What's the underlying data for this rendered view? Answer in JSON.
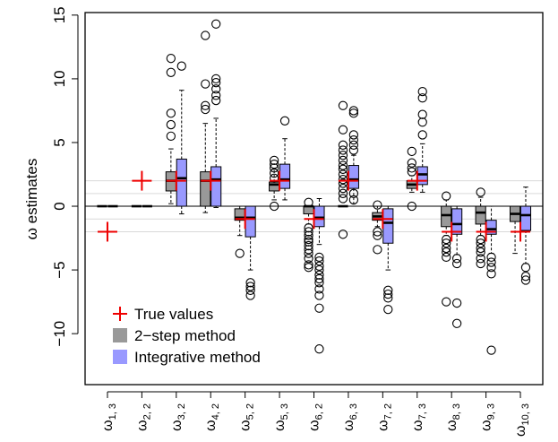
{
  "chart_data": {
    "type": "box",
    "title": "",
    "xlabel": "",
    "ylabel": "ω estimates",
    "ylim": [
      -14.0,
      15.2
    ],
    "y_ticks": [
      -10,
      -5,
      0,
      5,
      10,
      15
    ],
    "y_tick_labels": [
      "−10",
      "−5",
      "0",
      "5",
      "10",
      "15"
    ],
    "categories": [
      {
        "base": "ω",
        "sub": "1, 3"
      },
      {
        "base": "ω",
        "sub": "2, 2"
      },
      {
        "base": "ω",
        "sub": "3, 2"
      },
      {
        "base": "ω",
        "sub": "4, 2"
      },
      {
        "base": "ω",
        "sub": "5, 2"
      },
      {
        "base": "ω",
        "sub": "5, 3"
      },
      {
        "base": "ω",
        "sub": "6, 2"
      },
      {
        "base": "ω",
        "sub": "6, 3"
      },
      {
        "base": "ω",
        "sub": "7, 2"
      },
      {
        "base": "ω",
        "sub": "7, 3"
      },
      {
        "base": "ω",
        "sub": "8, 3"
      },
      {
        "base": "ω",
        "sub": "9, 3"
      },
      {
        "base": "ω",
        "sub": "10, 3"
      }
    ],
    "true_values": [
      -2,
      2,
      2,
      2,
      -1,
      2,
      -1,
      2,
      -1,
      2,
      -2,
      -2,
      -2
    ],
    "reference_lines": [
      -2,
      -1,
      1,
      2
    ],
    "zero_line": 0,
    "series": [
      {
        "name": "2−step method",
        "color": "#999999",
        "boxes": [
          {
            "q1": 0,
            "median": 0,
            "q3": 0,
            "lo": 0,
            "hi": 0,
            "outliers": []
          },
          {
            "q1": 0,
            "median": 0,
            "q3": 0,
            "lo": 0,
            "hi": 0,
            "outliers": []
          },
          {
            "q1": 1.2,
            "median": 2.0,
            "q3": 2.7,
            "lo": 0.2,
            "hi": 4.5,
            "outliers": [
              5.5,
              6.4,
              7.3,
              10.5,
              11.6
            ]
          },
          {
            "q1": 0,
            "median": 2.0,
            "q3": 2.7,
            "lo": -0.5,
            "hi": 6.5,
            "outliers": [
              7.6,
              7.9,
              9.6,
              13.4
            ]
          },
          {
            "q1": -1.1,
            "median": -0.9,
            "q3": -0.2,
            "lo": -2.3,
            "hi": 0,
            "outliers": [
              -3.7
            ]
          },
          {
            "q1": 1.2,
            "median": 1.7,
            "q3": 1.9,
            "lo": 0.5,
            "hi": 2.9,
            "outliers": [
              0.0,
              2.2,
              2.6,
              3.0,
              3.3,
              3.6
            ]
          },
          {
            "q1": -0.6,
            "median": 0,
            "q3": 0,
            "lo": -1.4,
            "hi": 0,
            "outliers": [
              -1.7,
              -2.0,
              -2.3,
              -2.6,
              -2.8,
              -3.1,
              -3.4,
              -3.7,
              -4.1,
              -4.6,
              -4.8,
              0.3
            ]
          },
          {
            "q1": 0,
            "median": 0,
            "q3": 0,
            "lo": 0,
            "hi": 0,
            "outliers": [
              0.6,
              1.0,
              1.4,
              1.8,
              2.1,
              2.5,
              2.9,
              3.2,
              3.6,
              4.0,
              4.4,
              4.8,
              6.0,
              7.9,
              -2.2
            ]
          },
          {
            "q1": -1.1,
            "median": -0.8,
            "q3": -0.5,
            "lo": -1.6,
            "hi": 0,
            "outliers": [
              -2.0,
              -2.3,
              -3.4,
              0.1
            ]
          },
          {
            "q1": 1.4,
            "median": 1.7,
            "q3": 2.0,
            "lo": 1.1,
            "hi": 2.4,
            "outliers": [
              0.0,
              2.7,
              3.0,
              3.4,
              4.3
            ]
          },
          {
            "q1": -1.6,
            "median": -0.7,
            "q3": 0,
            "lo": -2.3,
            "hi": 0.5,
            "outliers": [
              -2.6,
              -2.9,
              -3.3,
              -3.6,
              -4.0,
              -7.5,
              0.8
            ]
          },
          {
            "q1": -1.4,
            "median": -0.5,
            "q3": 0,
            "lo": -2.3,
            "hi": 0.7,
            "outliers": [
              -2.6,
              -2.9,
              -3.3,
              -3.6,
              -4.1,
              -4.5,
              1.1
            ]
          },
          {
            "q1": -1.2,
            "median": -0.6,
            "q3": 0,
            "lo": -3.7,
            "hi": 0,
            "outliers": []
          }
        ]
      },
      {
        "name": "Integrative method",
        "color": "#9999ff",
        "boxes": [
          {
            "q1": 0,
            "median": 0,
            "q3": 0,
            "lo": 0,
            "hi": 0,
            "outliers": []
          },
          {
            "q1": 0,
            "median": 0,
            "q3": 0,
            "lo": 0,
            "hi": 0,
            "outliers": []
          },
          {
            "q1": 0,
            "median": 2.2,
            "q3": 3.7,
            "lo": -0.6,
            "hi": 9.1,
            "outliers": [
              11.0
            ]
          },
          {
            "q1": 0,
            "median": 2.1,
            "q3": 3.1,
            "lo": -0.1,
            "hi": 6.9,
            "outliers": [
              8.3,
              8.7,
              9.2,
              9.7,
              10.0,
              14.3
            ]
          },
          {
            "q1": -2.4,
            "median": -0.9,
            "q3": 0,
            "lo": -5.0,
            "hi": 0,
            "outliers": [
              -6.0,
              -6.3,
              -6.6,
              -7.0
            ]
          },
          {
            "q1": 1.4,
            "median": 2.1,
            "q3": 3.3,
            "lo": 0.5,
            "hi": 5.3,
            "outliers": [
              6.7
            ]
          },
          {
            "q1": -1.6,
            "median": -0.9,
            "q3": 0,
            "lo": -3.0,
            "hi": 0.6,
            "outliers": [
              -4.0,
              -4.3,
              -4.7,
              -5.0,
              -5.4,
              -5.7,
              -6.0,
              -6.5,
              -7.0,
              -8.0,
              -11.2
            ]
          },
          {
            "q1": 1.4,
            "median": 2.1,
            "q3": 3.2,
            "lo": 0,
            "hi": 4.0,
            "outliers": [
              4.4,
              4.8,
              5.2,
              5.6,
              7.3,
              7.5,
              0.5,
              1.0
            ]
          },
          {
            "q1": -2.9,
            "median": -1.3,
            "q3": -0.2,
            "lo": -5.0,
            "hi": 0,
            "outliers": [
              -6.6,
              -6.9,
              -7.2,
              -8.1
            ]
          },
          {
            "q1": 1.7,
            "median": 2.5,
            "q3": 3.1,
            "lo": 1.1,
            "hi": 4.9,
            "outliers": [
              5.6,
              6.6,
              7.2,
              8.5,
              9.0
            ]
          },
          {
            "q1": -2.2,
            "median": -1.4,
            "q3": -0.2,
            "lo": -3.8,
            "hi": 0,
            "outliers": [
              -4.1,
              -4.5,
              -7.6,
              -9.2
            ]
          },
          {
            "q1": -2.2,
            "median": -1.8,
            "q3": -1.1,
            "lo": -3.7,
            "hi": 0,
            "outliers": [
              -4.0,
              -4.4,
              -4.8,
              -5.3,
              -11.3
            ]
          },
          {
            "q1": -1.9,
            "median": -0.7,
            "q3": 0,
            "lo": -4.5,
            "hi": 1.5,
            "outliers": [
              -4.8,
              -5.5,
              -5.8
            ]
          }
        ]
      }
    ],
    "legend": {
      "placement": "bottom-left",
      "entries": [
        {
          "label": "True values",
          "symbol": "cross",
          "color": "#ee0000"
        },
        {
          "label": "2−step method",
          "symbol": "square",
          "color": "#999999"
        },
        {
          "label": "Integrative method",
          "symbol": "square",
          "color": "#9999ff"
        }
      ]
    },
    "colors": {
      "true_marker": "#ee0000",
      "reference_line": "#d9d9d9",
      "axis": "#000000"
    }
  }
}
